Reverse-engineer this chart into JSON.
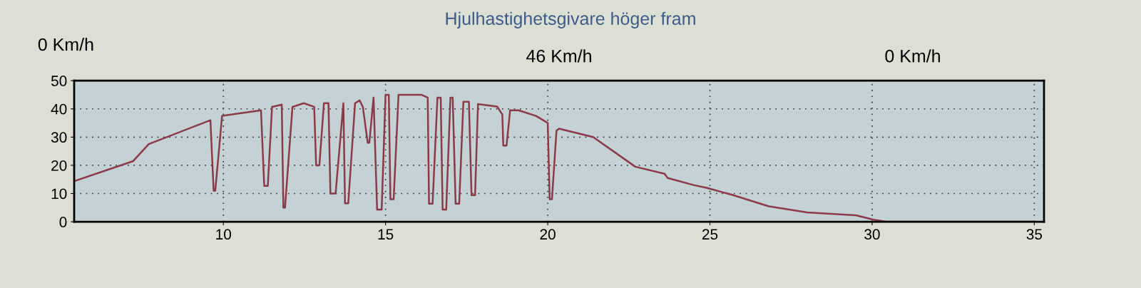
{
  "chart_data": {
    "type": "line",
    "title": "Hjulhastighetsgivare höger fram",
    "annotations": [
      "0 Km/h",
      "46 Km/h",
      "0 Km/h"
    ],
    "x": [
      5.43,
      7.22,
      7.7,
      9.6,
      9.7,
      9.75,
      9.96,
      11.16,
      11.26,
      11.37,
      11.5,
      11.8,
      11.85,
      11.9,
      12.13,
      12.48,
      12.8,
      12.86,
      12.96,
      13.1,
      13.24,
      13.3,
      13.46,
      13.7,
      13.75,
      13.85,
      14.06,
      14.2,
      14.3,
      14.45,
      14.5,
      14.63,
      14.74,
      14.88,
      15.0,
      15.1,
      15.15,
      15.25,
      15.4,
      16.1,
      16.3,
      16.34,
      16.45,
      16.6,
      16.7,
      16.76,
      16.87,
      17.0,
      17.07,
      17.16,
      17.27,
      17.4,
      17.57,
      17.65,
      17.76,
      17.85,
      18.44,
      18.6,
      18.63,
      18.73,
      18.84,
      19.1,
      19.64,
      20.0,
      20.06,
      20.13,
      20.27,
      20.35,
      21.4,
      22.7,
      23.6,
      23.7,
      24.5,
      24.9,
      25.7,
      26.8,
      28.0,
      29.5,
      30.05,
      30.45,
      35.0
    ],
    "series": [
      {
        "color": "#8b3a4a",
        "values": [
          14.5,
          21.5,
          27.5,
          36,
          11,
          11,
          37.5,
          39.5,
          12.7,
          12.7,
          40.7,
          41.5,
          5,
          5,
          40.7,
          42,
          40.7,
          20,
          20,
          42,
          42,
          10,
          10,
          42,
          6.5,
          6.5,
          42,
          43,
          40.7,
          28,
          28,
          44,
          4.3,
          4.3,
          45,
          45,
          8,
          8,
          45,
          45,
          44,
          6.4,
          6.4,
          44,
          44,
          4.3,
          4.3,
          44,
          44,
          6.4,
          6.4,
          42.5,
          42.5,
          9.4,
          9.4,
          41.7,
          40.8,
          38,
          27,
          27,
          39.5,
          39.5,
          37.5,
          35,
          8,
          8,
          32.3,
          33,
          30,
          19.5,
          17,
          15.5,
          13,
          12,
          9.5,
          5.5,
          3.3,
          2.3,
          0.7,
          0,
          0
        ]
      }
    ],
    "xlim": [
      5.4,
      35.3
    ],
    "ylim": [
      0,
      50
    ],
    "xticks": [
      10,
      15,
      20,
      25,
      30,
      35
    ],
    "yticks": [
      0,
      10,
      20,
      30,
      40,
      50
    ],
    "grid": true,
    "legend": false,
    "marker": "none",
    "line_style": "solid"
  }
}
